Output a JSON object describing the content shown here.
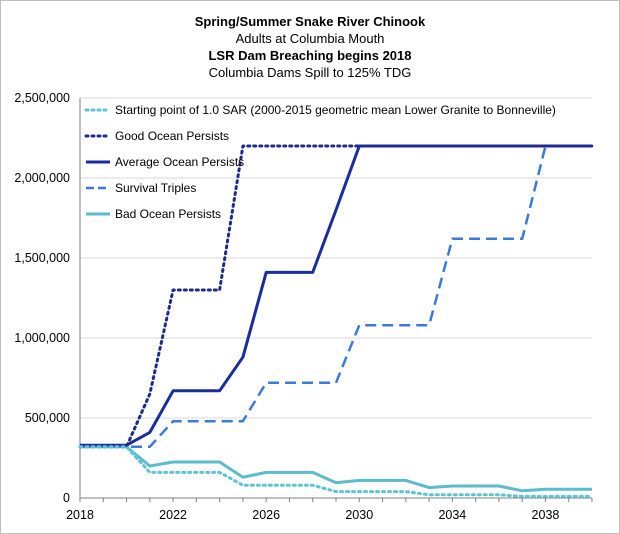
{
  "chart_data": {
    "type": "line",
    "title": "Spring/Summer Snake River Chinook",
    "subtitle_lines": [
      "Adults at Columbia  Mouth",
      "LSR Dam Breaching begins 2018",
      "Columbia Dams Spill to 125% TDG"
    ],
    "xlabel": "",
    "ylabel": "",
    "xlim": [
      2018,
      2040
    ],
    "ylim": [
      0,
      2500000
    ],
    "x_ticks": [
      "2018",
      "2022",
      "2026",
      "2030",
      "2034",
      "2038"
    ],
    "y_ticks": [
      "0",
      "500,000",
      "1,000,000",
      "1,500,000",
      "2,000,000",
      "2,500,000"
    ],
    "grid": "horizontal",
    "legend_position": "top-left",
    "x": [
      2018,
      2019,
      2020,
      2021,
      2022,
      2023,
      2024,
      2025,
      2026,
      2027,
      2028,
      2029,
      2030,
      2031,
      2032,
      2033,
      2034,
      2035,
      2036,
      2037,
      2038,
      2039,
      2040
    ],
    "series": [
      {
        "name": "Starting point of 1.0 SAR (2000-2015 geometric mean Lower Granite to Bonneville)",
        "color": "#5bc4d4",
        "style": "dotted",
        "values": [
          320000,
          320000,
          320000,
          160000,
          160000,
          160000,
          160000,
          80000,
          80000,
          80000,
          80000,
          40000,
          40000,
          40000,
          40000,
          20000,
          20000,
          20000,
          20000,
          10000,
          10000,
          10000,
          10000
        ]
      },
      {
        "name": "Good Ocean Persists",
        "color": "#1f2a8c",
        "style": "dotted",
        "values": [
          320000,
          320000,
          320000,
          650000,
          1300000,
          1300000,
          1300000,
          2200000,
          2200000,
          2200000,
          2200000,
          2200000,
          2200000,
          2200000,
          2200000,
          2200000,
          2200000,
          2200000,
          2200000,
          2200000,
          2200000,
          2200000,
          2200000
        ]
      },
      {
        "name": "Average Ocean Persists",
        "color": "#1a2d9c",
        "style": "solid",
        "values": [
          330000,
          330000,
          330000,
          410000,
          670000,
          670000,
          670000,
          880000,
          1410000,
          1410000,
          1410000,
          1800000,
          2200000,
          2200000,
          2200000,
          2200000,
          2200000,
          2200000,
          2200000,
          2200000,
          2200000,
          2200000,
          2200000
        ]
      },
      {
        "name": "Survival Triples",
        "color": "#3d7ad8",
        "style": "dashed",
        "values": [
          320000,
          320000,
          320000,
          320000,
          480000,
          480000,
          480000,
          480000,
          720000,
          720000,
          720000,
          720000,
          1080000,
          1080000,
          1080000,
          1080000,
          1620000,
          1620000,
          1620000,
          1620000,
          2200000,
          2200000,
          2200000
        ]
      },
      {
        "name": "Bad Ocean Persists",
        "color": "#5bbccc",
        "style": "solid",
        "values": [
          320000,
          320000,
          320000,
          200000,
          225000,
          225000,
          225000,
          130000,
          160000,
          160000,
          160000,
          95000,
          110000,
          110000,
          110000,
          65000,
          75000,
          75000,
          75000,
          45000,
          55000,
          55000,
          55000
        ]
      }
    ]
  }
}
